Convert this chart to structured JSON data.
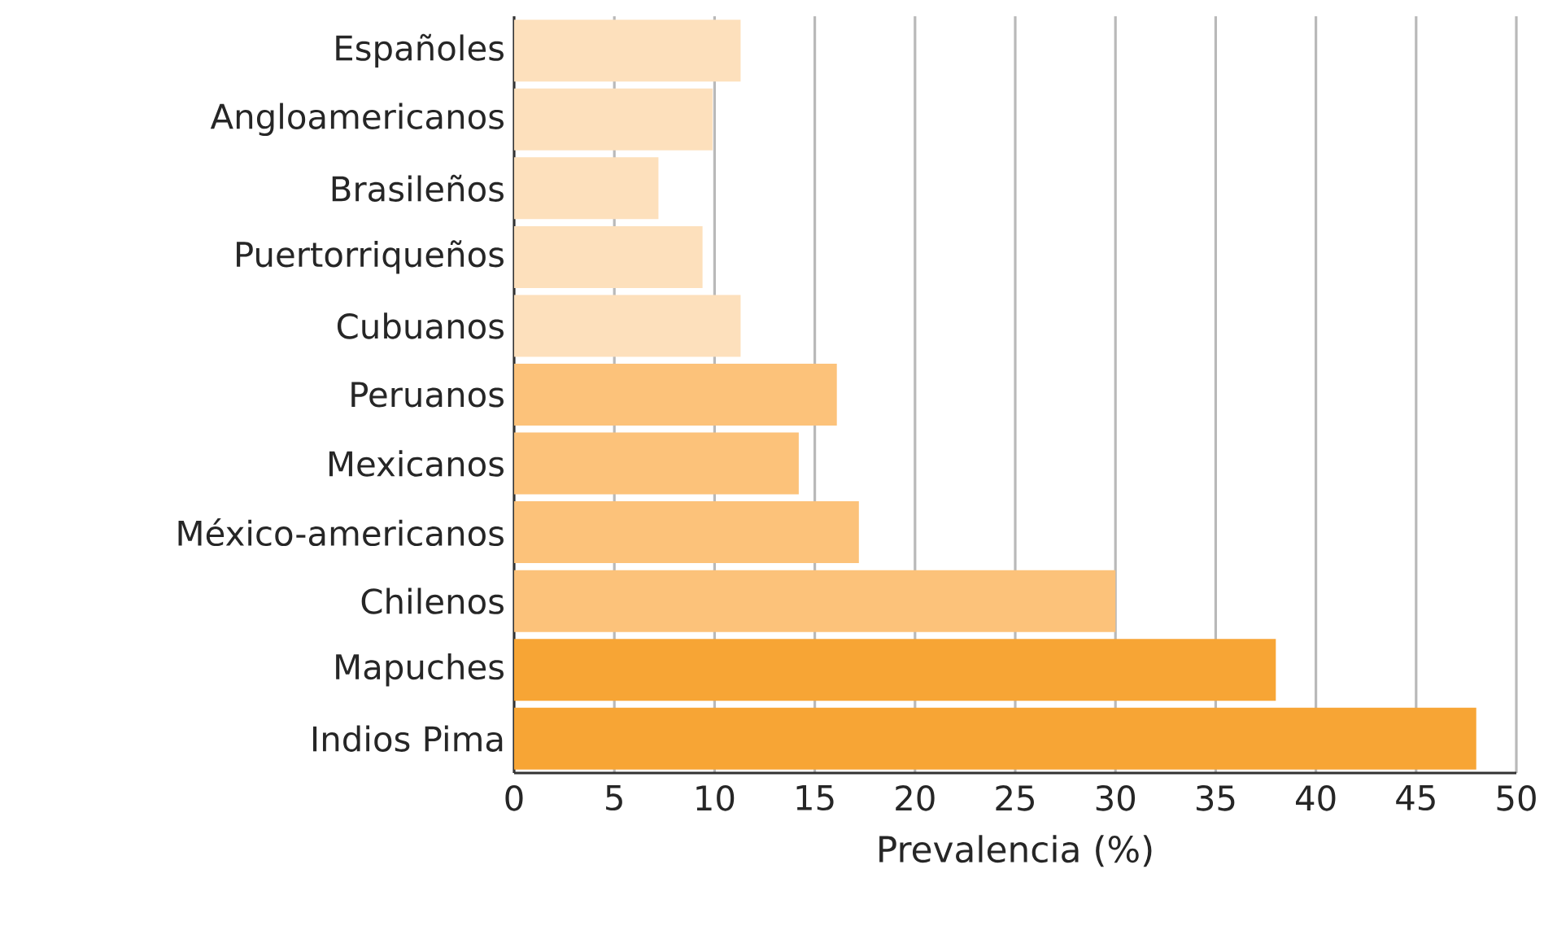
{
  "chart_data": {
    "type": "bar",
    "orientation": "horizontal",
    "xlabel": "Prevalencia (%)",
    "categories": [
      "Españoles",
      "Angloamericanos",
      "Brasileños",
      "Puertorriqueños",
      "Cubuanos",
      "Peruanos",
      "Mexicanos",
      "México-americanos",
      "Chilenos",
      "Mapuches",
      "Indios Pima"
    ],
    "values": [
      11.3,
      9.9,
      7.2,
      9.4,
      11.3,
      16.1,
      14.2,
      17.2,
      30,
      38,
      48
    ],
    "colors": [
      "#fde0bc",
      "#fde0bc",
      "#fde0bc",
      "#fde0bc",
      "#fde0bc",
      "#fcc27a",
      "#fcc27a",
      "#fcc27a",
      "#fcc27a",
      "#f7a535",
      "#f7a535"
    ],
    "xlim": [
      0,
      50
    ],
    "xticks": [
      0,
      5,
      10,
      15,
      20,
      25,
      30,
      35,
      40,
      45,
      50
    ],
    "grid": "x"
  }
}
